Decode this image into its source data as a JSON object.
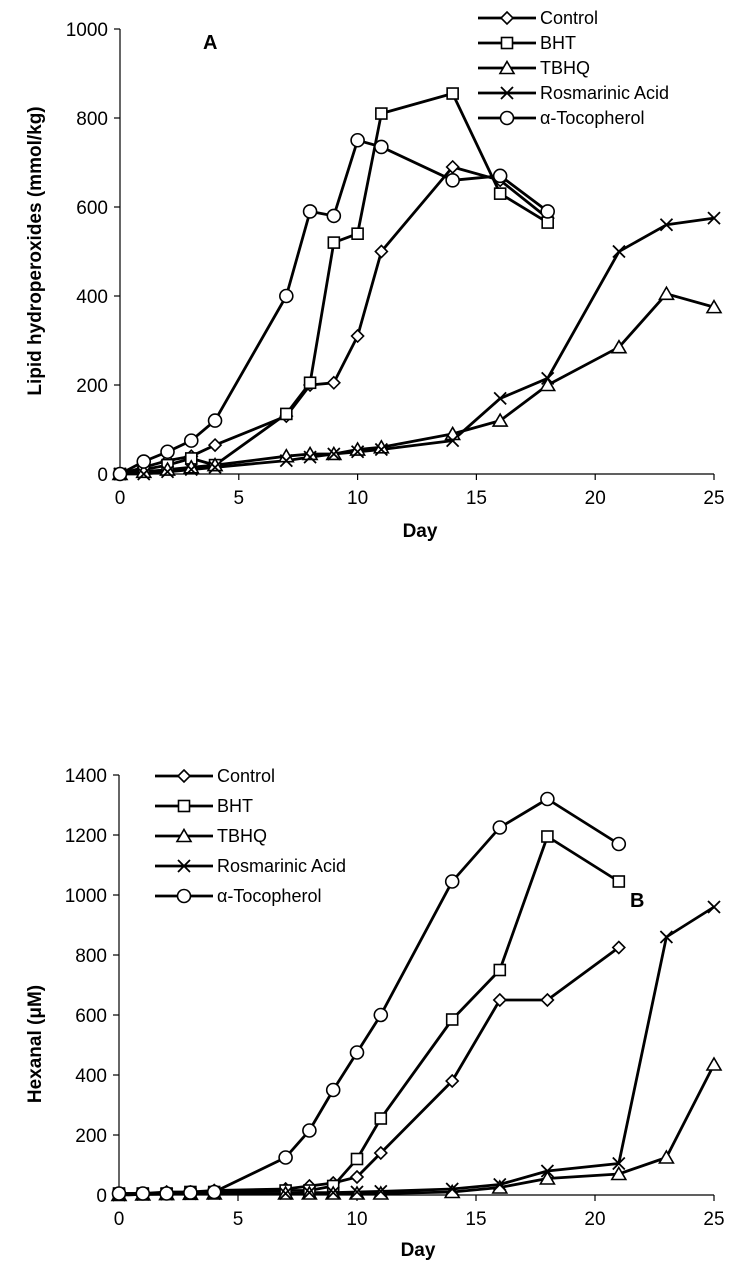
{
  "chart_data": [
    {
      "type": "line",
      "panel_label": "A",
      "xlabel": "Day",
      "ylabel": "Lipid hydroperoxides (mmol/kg)",
      "xlim": [
        0,
        25
      ],
      "ylim": [
        0,
        1000
      ],
      "xticks": [
        0,
        5,
        10,
        15,
        20,
        25
      ],
      "yticks": [
        0,
        200,
        400,
        600,
        800,
        1000
      ],
      "legend_position": "top-right",
      "series": [
        {
          "name": "Control",
          "marker": "diamond",
          "x": [
            0,
            1,
            2,
            3,
            4,
            7,
            8,
            9,
            10,
            11,
            14,
            16,
            18
          ],
          "y": [
            0,
            15,
            30,
            40,
            65,
            130,
            200,
            205,
            310,
            500,
            690,
            660,
            575
          ]
        },
        {
          "name": "BHT",
          "marker": "square",
          "x": [
            0,
            1,
            2,
            3,
            4,
            7,
            8,
            9,
            10,
            11,
            14,
            16,
            18
          ],
          "y": [
            0,
            10,
            20,
            35,
            20,
            135,
            205,
            520,
            540,
            810,
            855,
            630,
            565
          ]
        },
        {
          "name": "TBHQ",
          "marker": "triangle",
          "x": [
            0,
            1,
            2,
            3,
            4,
            7,
            8,
            9,
            10,
            11,
            14,
            16,
            18,
            21,
            23,
            25
          ],
          "y": [
            0,
            5,
            10,
            15,
            20,
            40,
            45,
            45,
            55,
            60,
            90,
            120,
            200,
            285,
            405,
            375
          ]
        },
        {
          "name": "Rosmarinic Acid",
          "marker": "cross",
          "x": [
            0,
            1,
            2,
            3,
            4,
            7,
            8,
            9,
            10,
            11,
            14,
            16,
            18,
            21,
            23,
            25
          ],
          "y": [
            0,
            0,
            5,
            10,
            15,
            30,
            38,
            45,
            50,
            55,
            75,
            170,
            215,
            500,
            560,
            575
          ]
        },
        {
          "name": "α-Tocopherol",
          "marker": "circle",
          "x": [
            0,
            1,
            2,
            3,
            4,
            7,
            8,
            9,
            10,
            11,
            14,
            16,
            18
          ],
          "y": [
            0,
            28,
            50,
            75,
            120,
            400,
            590,
            580,
            750,
            735,
            660,
            670,
            590
          ]
        }
      ]
    },
    {
      "type": "line",
      "panel_label": "B",
      "xlabel": "Day",
      "ylabel": "Hexanal (μM)",
      "xlim": [
        0,
        25
      ],
      "ylim": [
        0,
        1400
      ],
      "xticks": [
        0,
        5,
        10,
        15,
        20,
        25
      ],
      "yticks": [
        0,
        200,
        400,
        600,
        800,
        1000,
        1200,
        1400
      ],
      "legend_position": "top-left",
      "series": [
        {
          "name": "Control",
          "marker": "diamond",
          "x": [
            0,
            1,
            2,
            3,
            4,
            7,
            8,
            9,
            10,
            11,
            14,
            16,
            18,
            21
          ],
          "y": [
            5,
            5,
            10,
            10,
            15,
            20,
            30,
            40,
            60,
            140,
            380,
            650,
            650,
            825
          ]
        },
        {
          "name": "BHT",
          "marker": "square",
          "x": [
            0,
            1,
            2,
            3,
            4,
            7,
            8,
            9,
            10,
            11,
            14,
            16,
            18,
            21
          ],
          "y": [
            5,
            5,
            5,
            10,
            10,
            15,
            15,
            30,
            120,
            255,
            585,
            750,
            1195,
            1045
          ]
        },
        {
          "name": "TBHQ",
          "marker": "triangle",
          "x": [
            0,
            1,
            2,
            3,
            4,
            7,
            8,
            9,
            10,
            11,
            14,
            16,
            18,
            21,
            23,
            25
          ],
          "y": [
            0,
            2,
            3,
            4,
            5,
            5,
            5,
            5,
            5,
            5,
            10,
            25,
            55,
            70,
            125,
            435
          ]
        },
        {
          "name": "Rosmarinic Acid",
          "marker": "cross",
          "x": [
            0,
            1,
            2,
            3,
            4,
            7,
            8,
            9,
            10,
            11,
            14,
            16,
            18,
            21,
            23,
            25
          ],
          "y": [
            0,
            2,
            3,
            4,
            5,
            5,
            8,
            8,
            10,
            12,
            20,
            35,
            80,
            105,
            860,
            960
          ]
        },
        {
          "name": "α-Tocopherol",
          "marker": "circle",
          "x": [
            0,
            1,
            2,
            3,
            4,
            7,
            8,
            9,
            10,
            11,
            14,
            16,
            18,
            21
          ],
          "y": [
            5,
            5,
            5,
            8,
            10,
            125,
            215,
            350,
            475,
            600,
            1045,
            1225,
            1320,
            1170
          ]
        }
      ]
    }
  ]
}
